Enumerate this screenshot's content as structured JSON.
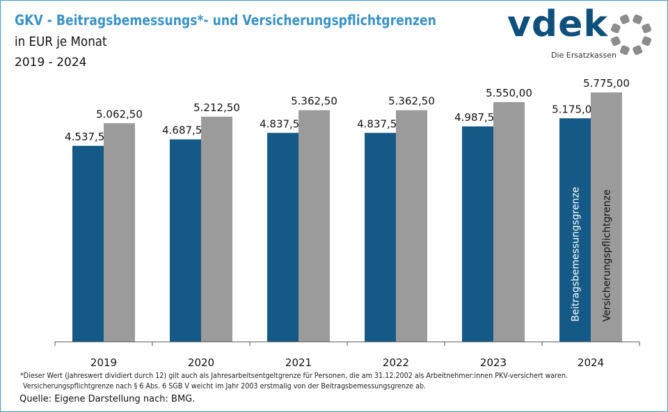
{
  "title": "GKV - Beitragsbemessungs*- und Versicherungspflichtgrenzen",
  "subtitle": "in EUR je Monat",
  "period": "2019 - 2024",
  "logo": {
    "wordmark": "vdek",
    "tagline": "Die Ersatzkassen",
    "ring_color": "#8c8c8c"
  },
  "footnote_line1": "*Dieser Wert (Jahreswert dividiert durch 12) gilt auch als Jahresarbeitsentgeltgrenze für Personen, die am 31.12.2002 als Arbeitnehmer:innen PKV-versichert waren.",
  "footnote_line2": "Versicherungspflichtgrenze nach § 6 Abs. 6 SGB V weicht im Jahr 2003 erstmalig von der Beitragsbemessungsgrenze ab.",
  "source": "Quelle: Eigene Darstellung nach: BMG.",
  "chart_data": {
    "type": "bar",
    "categories": [
      "2019",
      "2020",
      "2021",
      "2022",
      "2023",
      "2024"
    ],
    "series": [
      {
        "name": "Beitragsbemessungsgrenze",
        "color": "#155a87",
        "values": [
          4537.5,
          4687.5,
          4837.5,
          4837.5,
          4987.5,
          5175.0
        ],
        "labels": [
          "4.537,50",
          "4.687,50",
          "4.837,50",
          "4.837,50",
          "4.987,50",
          "5.175,00"
        ]
      },
      {
        "name": "Versicherungspflichtgrenze",
        "color": "#9b9b9b",
        "values": [
          5062.5,
          5212.5,
          5362.5,
          5362.5,
          5550.0,
          5775.0
        ],
        "labels": [
          "5.062,50",
          "5.212,50",
          "5.362,50",
          "5.362,50",
          "5.550,00",
          "5.775,00"
        ]
      }
    ],
    "legend": "inside last category bars",
    "ylim": [
      0,
      6450
    ],
    "grid": false
  }
}
